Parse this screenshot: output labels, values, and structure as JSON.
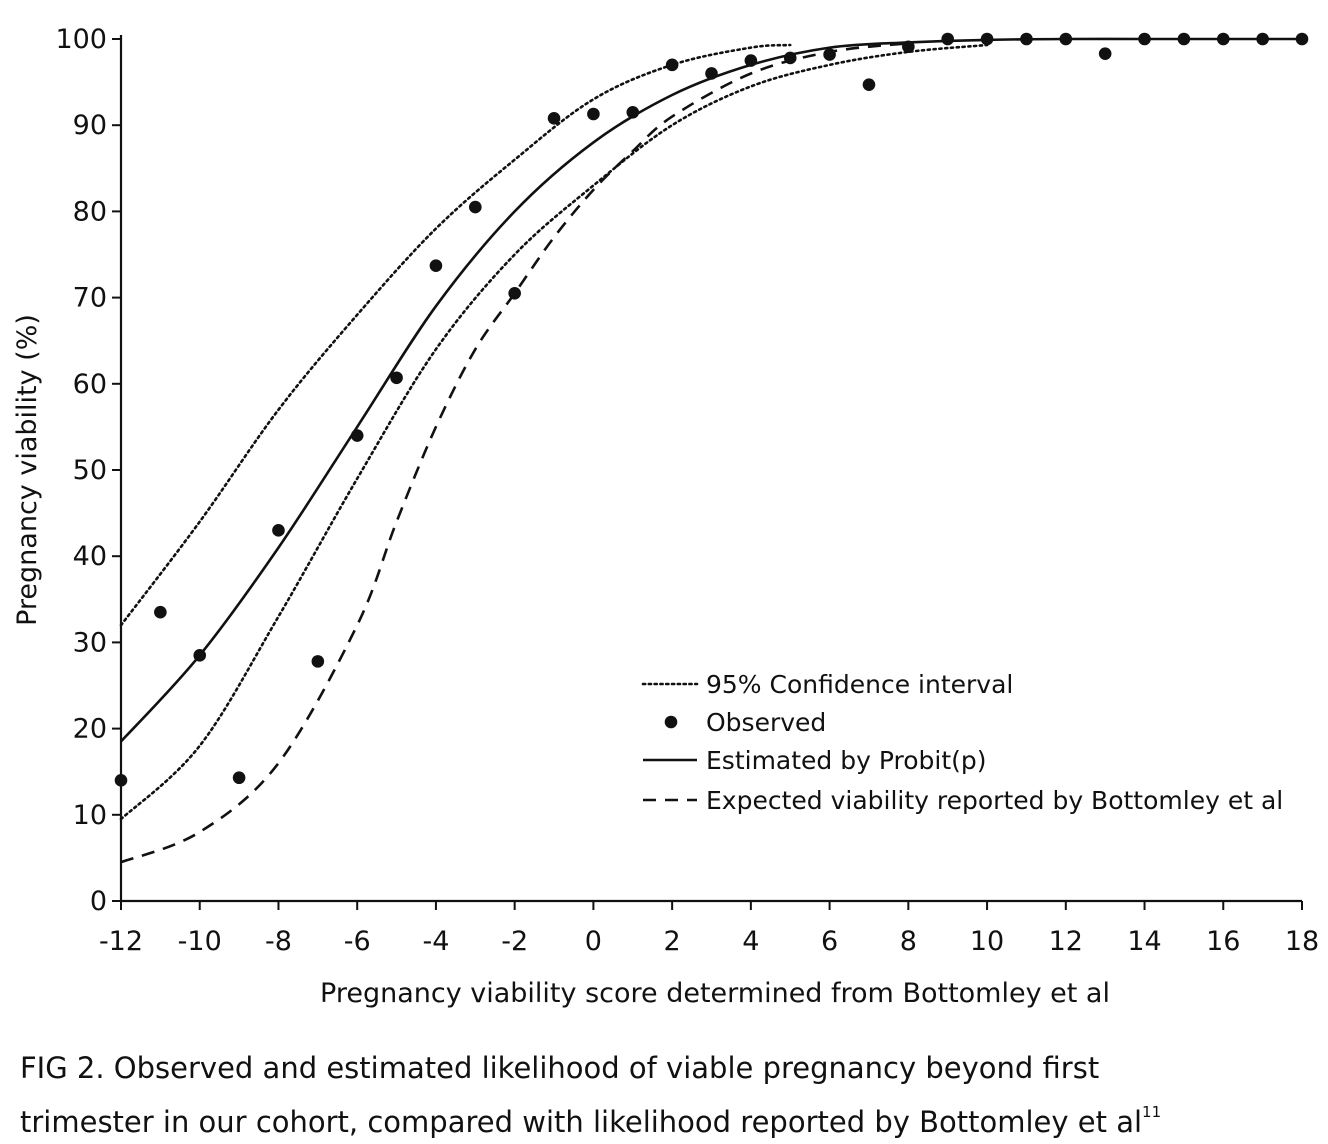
{
  "chart_data": {
    "type": "scatter",
    "xlabel": "Pregnancy viability score determined from Bottomley et al",
    "ylabel": "Pregnancy viability (%)",
    "xlim": [
      -12,
      18
    ],
    "ylim": [
      0,
      100
    ],
    "xticks": [
      "-12",
      "-10",
      "-8",
      "-6",
      "-4",
      "-2",
      "0",
      "2",
      "4",
      "6",
      "8",
      "10",
      "12",
      "14",
      "16",
      "18"
    ],
    "yticks": [
      "0",
      "10",
      "20",
      "30",
      "40",
      "50",
      "60",
      "70",
      "80",
      "90",
      "100"
    ],
    "legend_position": "lower-right",
    "series": [
      {
        "name": "95% Confidence interval",
        "style": "dotted",
        "x": [
          -12,
          -10,
          -8,
          -6,
          -4,
          -2,
          0,
          2,
          4,
          5
        ],
        "y": [
          32,
          44,
          57,
          68,
          78,
          86,
          93,
          97,
          99,
          99.3
        ]
      },
      {
        "name": "95% Confidence interval",
        "style": "dotted",
        "x": [
          -12,
          -10,
          -8,
          -6,
          -4,
          -2,
          0,
          2,
          4,
          6,
          8,
          10
        ],
        "y": [
          9.5,
          18,
          33,
          49,
          64,
          75,
          83,
          90,
          94.5,
          97,
          98.5,
          99.3
        ]
      },
      {
        "name": "Observed",
        "style": "points",
        "x": [
          -12,
          -11,
          -10,
          -9,
          -8,
          -7,
          -6,
          -5,
          -4,
          -3,
          -2,
          -1,
          0,
          1,
          2,
          3,
          4,
          5,
          6,
          7,
          8,
          9,
          10,
          11,
          12,
          13,
          14,
          15,
          16,
          17,
          18
        ],
        "y": [
          14,
          33.5,
          28.5,
          14.3,
          43,
          27.8,
          54,
          60.7,
          73.7,
          80.5,
          70.5,
          90.8,
          91.3,
          91.5,
          97,
          96,
          97.5,
          97.8,
          98.2,
          94.7,
          99.1,
          100,
          100,
          100,
          100,
          98.3,
          100,
          100,
          100,
          100,
          100
        ]
      },
      {
        "name": "Estimated by Probit(p)",
        "style": "solid",
        "x": [
          -12,
          -10,
          -8,
          -6,
          -4,
          -2,
          0,
          2,
          4,
          6,
          8,
          10,
          12,
          14,
          16,
          18
        ],
        "y": [
          18.5,
          28.5,
          41,
          55,
          69,
          80,
          88,
          93.5,
          97,
          99,
          99.6,
          99.9,
          100,
          100,
          100,
          100
        ]
      },
      {
        "name": "Expected viability reported by Bottomley et al",
        "style": "dashed",
        "x": [
          -12,
          -10,
          -8,
          -6,
          -5,
          -4,
          -3,
          -2,
          -1,
          0,
          1,
          2,
          4,
          6,
          8
        ],
        "y": [
          4.5,
          8,
          16,
          32,
          44,
          55,
          64,
          70.5,
          77,
          82.5,
          87,
          91,
          96,
          98.5,
          99.5
        ]
      }
    ]
  },
  "colors": {
    "ink": "#111111",
    "background": "#ffffff"
  },
  "caption": {
    "line1": "FIG 2.  Observed and estimated likelihood of viable pregnancy beyond first",
    "line2": "trimester in our cohort, compared with likelihood reported by Bottomley et al",
    "line2_sup": "11"
  }
}
